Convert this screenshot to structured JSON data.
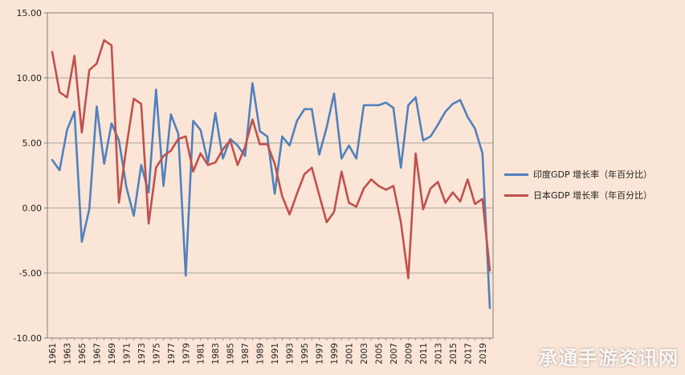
{
  "chart_data": {
    "type": "line",
    "title": "",
    "xlabel": "",
    "ylabel": "",
    "ylim": [
      -10,
      15
    ],
    "yticks": [
      -10,
      -5,
      0,
      5,
      10,
      15
    ],
    "ytick_labels": [
      "-10.00",
      "-5.00",
      "0.00",
      "5.00",
      "10.00",
      "15.00"
    ],
    "x": [
      1961,
      1962,
      1963,
      1964,
      1965,
      1966,
      1967,
      1968,
      1969,
      1970,
      1971,
      1972,
      1973,
      1974,
      1975,
      1976,
      1977,
      1978,
      1979,
      1980,
      1981,
      1982,
      1983,
      1984,
      1985,
      1986,
      1987,
      1988,
      1989,
      1990,
      1991,
      1992,
      1993,
      1994,
      1995,
      1996,
      1997,
      1998,
      1999,
      2000,
      2001,
      2002,
      2003,
      2004,
      2005,
      2006,
      2007,
      2008,
      2009,
      2010,
      2011,
      2012,
      2013,
      2014,
      2015,
      2016,
      2017,
      2018,
      2019,
      2020
    ],
    "xtick_labels": [
      "1961",
      "1963",
      "1965",
      "1967",
      "1969",
      "1971",
      "1973",
      "1975",
      "1977",
      "1979",
      "1981",
      "1983",
      "1985",
      "1987",
      "1989",
      "1991",
      "1993",
      "1995",
      "1997",
      "1999",
      "2001",
      "2003",
      "2005",
      "2007",
      "2009",
      "2011",
      "2013",
      "2015",
      "2017",
      "2019"
    ],
    "grid": "horizontal",
    "legend_position": "right",
    "series": [
      {
        "name": "印度GDP 增长率（年百分比）",
        "color": "#4f81bd",
        "values": [
          3.7,
          2.9,
          6.0,
          7.4,
          -2.6,
          -0.1,
          7.8,
          3.4,
          6.5,
          5.2,
          1.6,
          -0.6,
          3.3,
          1.2,
          9.1,
          1.7,
          7.2,
          5.7,
          -5.2,
          6.7,
          6.0,
          3.5,
          7.3,
          3.8,
          5.3,
          4.8,
          4.0,
          9.6,
          5.9,
          5.5,
          1.1,
          5.5,
          4.8,
          6.7,
          7.6,
          7.6,
          4.1,
          6.2,
          8.8,
          3.8,
          4.8,
          3.8,
          7.9,
          7.9,
          7.9,
          8.1,
          7.7,
          3.1,
          7.9,
          8.5,
          5.2,
          5.5,
          6.4,
          7.4,
          8.0,
          8.3,
          7.0,
          6.1,
          4.2,
          -7.7
        ]
      },
      {
        "name": "日本GDP 增长率（年百分比）",
        "color": "#c0504d",
        "values": [
          12.0,
          8.9,
          8.5,
          11.7,
          5.8,
          10.6,
          11.1,
          12.9,
          12.5,
          0.4,
          4.7,
          8.4,
          8.0,
          -1.2,
          3.1,
          4.0,
          4.4,
          5.3,
          5.5,
          2.8,
          4.2,
          3.3,
          3.5,
          4.5,
          5.2,
          3.3,
          4.7,
          6.8,
          4.9,
          4.9,
          3.4,
          0.9,
          -0.5,
          1.1,
          2.6,
          3.1,
          1.0,
          -1.1,
          -0.3,
          2.8,
          0.4,
          0.1,
          1.5,
          2.2,
          1.7,
          1.4,
          1.7,
          -1.1,
          -5.4,
          4.2,
          -0.1,
          1.5,
          2.0,
          0.4,
          1.2,
          0.5,
          2.2,
          0.3,
          0.7,
          -4.8
        ]
      }
    ]
  },
  "watermark": "承通手游资讯网"
}
